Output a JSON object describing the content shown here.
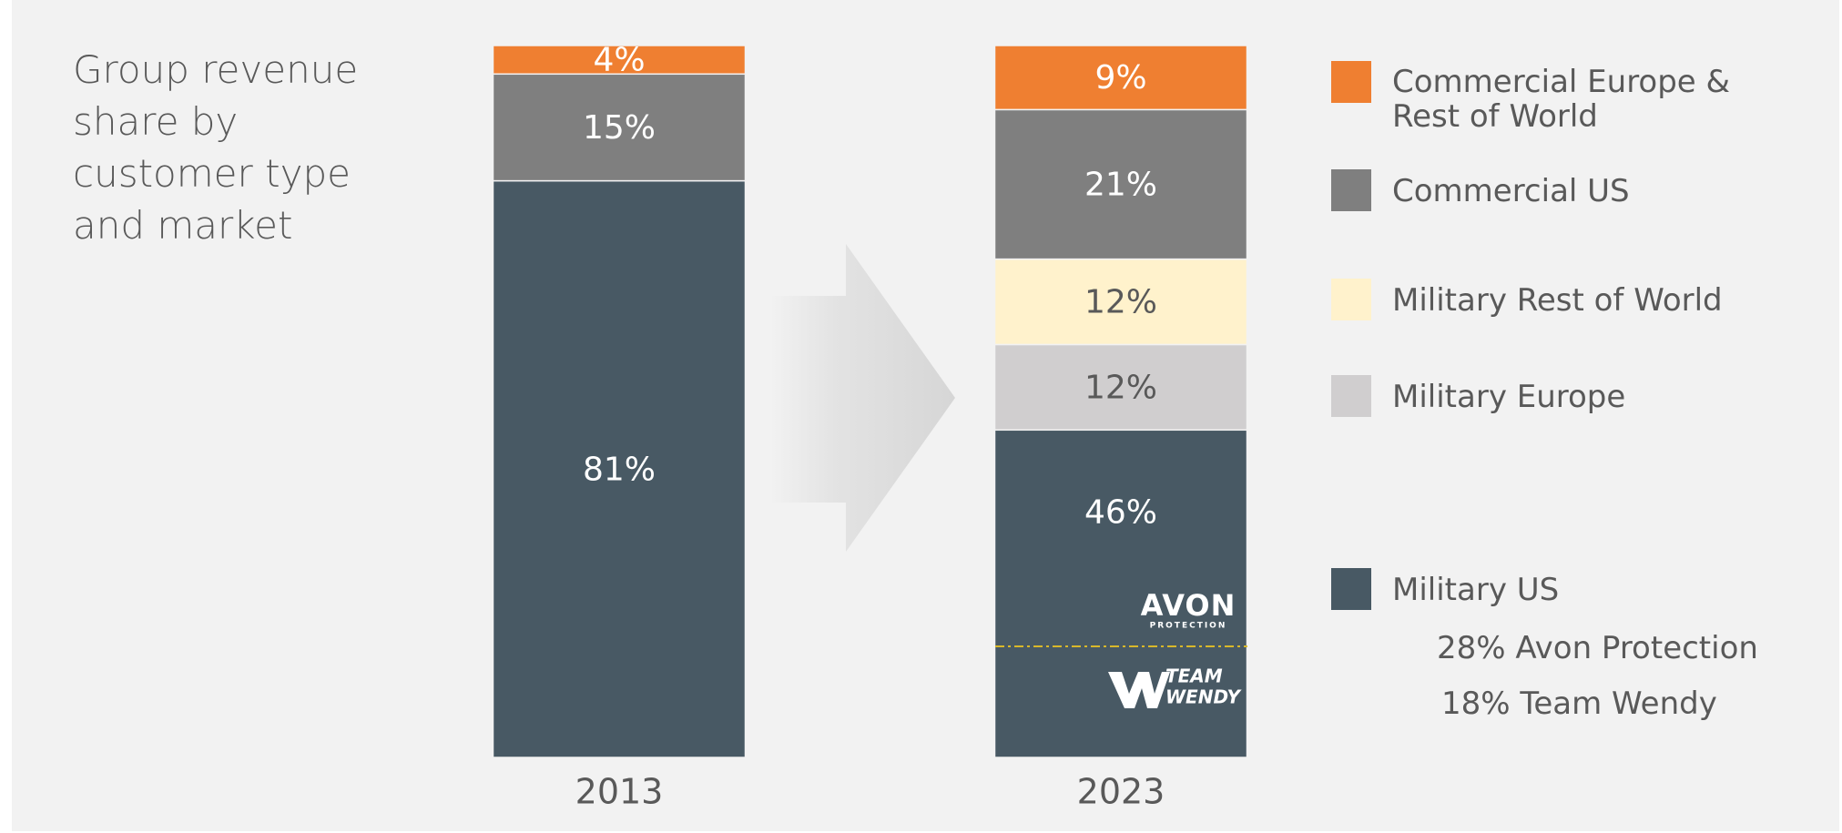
{
  "chart_data": {
    "type": "stacked_bar",
    "title": "Group revenue share by customer type and market",
    "categories": [
      "2013",
      "2023"
    ],
    "series": [
      {
        "name": "Military US",
        "color": "#485964",
        "values": [
          81,
          46
        ],
        "value_labels": [
          "81%",
          "46%"
        ]
      },
      {
        "name": "Military Europe",
        "color": "#d0cecf",
        "values": [
          null,
          12
        ],
        "value_labels": [
          null,
          "12%"
        ]
      },
      {
        "name": "Military Rest of World",
        "color": "#fff2cc",
        "values": [
          null,
          12
        ],
        "value_labels": [
          null,
          "12%"
        ]
      },
      {
        "name": "Commercial US",
        "color": "#7f7f7f",
        "values": [
          15,
          21
        ],
        "value_labels": [
          "15%",
          "21%"
        ]
      },
      {
        "name": "Commercial Europe & Rest of World",
        "color": "#ef7f31",
        "values": [
          4,
          9
        ],
        "value_labels": [
          "4%",
          "9%"
        ]
      }
    ],
    "legend_order": [
      4,
      3,
      2,
      1,
      0
    ],
    "annotations": [
      "28% Avon Protection",
      "18% Team Wendy"
    ],
    "logos": {
      "avon": [
        "AVON",
        "PROTECTION"
      ],
      "team_wendy": [
        "TEAM",
        "WENDY"
      ]
    }
  }
}
